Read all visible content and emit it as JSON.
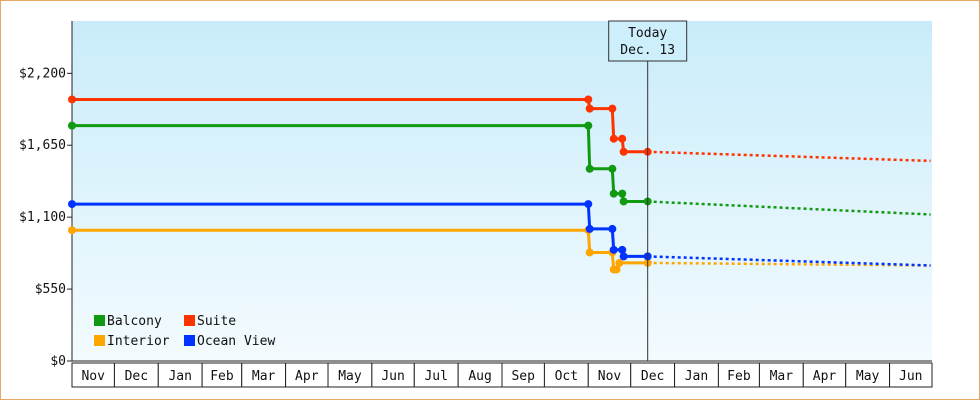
{
  "chart_data": {
    "type": "line",
    "title": "",
    "xlabel": "",
    "ylabel": "",
    "step": true,
    "ylim": [
      0,
      2600
    ],
    "yticks": [
      0,
      550,
      1100,
      1650,
      2200
    ],
    "ytick_labels": [
      "$0",
      "$550",
      "$1,100",
      "$1,650",
      "$2,200"
    ],
    "x_axis": {
      "start": "2022-11-01",
      "end": "2024-06-30",
      "months": [
        {
          "label": "Nov",
          "start": "2022-11-01"
        },
        {
          "label": "Dec",
          "start": "2022-12-01"
        },
        {
          "label": "Jan",
          "start": "2023-01-01"
        },
        {
          "label": "Feb",
          "start": "2023-02-01"
        },
        {
          "label": "Mar",
          "start": "2023-03-01"
        },
        {
          "label": "Apr",
          "start": "2023-04-01"
        },
        {
          "label": "May",
          "start": "2023-05-01"
        },
        {
          "label": "Jun",
          "start": "2023-06-01"
        },
        {
          "label": "Jul",
          "start": "2023-07-01"
        },
        {
          "label": "Aug",
          "start": "2023-08-01"
        },
        {
          "label": "Sep",
          "start": "2023-09-01"
        },
        {
          "label": "Oct",
          "start": "2023-10-01"
        },
        {
          "label": "Nov",
          "start": "2023-11-01"
        },
        {
          "label": "Dec",
          "start": "2023-12-01"
        },
        {
          "label": "Jan",
          "start": "2024-01-01"
        },
        {
          "label": "Feb",
          "start": "2024-02-01"
        },
        {
          "label": "Mar",
          "start": "2024-03-01"
        },
        {
          "label": "Apr",
          "start": "2024-04-01"
        },
        {
          "label": "May",
          "start": "2024-05-01"
        },
        {
          "label": "Jun",
          "start": "2024-06-01"
        }
      ]
    },
    "annotation": {
      "line1": "Today",
      "line2": "Dec. 13",
      "date": "2023-12-13"
    },
    "grid": false,
    "legend": "bottom-left",
    "series": [
      {
        "name": "Balcony",
        "color": "#119911",
        "points": [
          {
            "x": "2022-11-01",
            "y": 1800
          },
          {
            "x": "2023-11-01",
            "y": 1800
          },
          {
            "x": "2023-11-02",
            "y": 1470
          },
          {
            "x": "2023-11-18",
            "y": 1470
          },
          {
            "x": "2023-11-19",
            "y": 1280
          },
          {
            "x": "2023-11-25",
            "y": 1280
          },
          {
            "x": "2023-11-26",
            "y": 1220
          },
          {
            "x": "2023-12-13",
            "y": 1220
          }
        ],
        "forecast": [
          {
            "x": "2023-12-13",
            "y": 1220
          },
          {
            "x": "2024-06-30",
            "y": 1120
          }
        ]
      },
      {
        "name": "Suite",
        "color": "#ff3300",
        "points": [
          {
            "x": "2022-11-01",
            "y": 2000
          },
          {
            "x": "2023-11-01",
            "y": 2000
          },
          {
            "x": "2023-11-02",
            "y": 1930
          },
          {
            "x": "2023-11-18",
            "y": 1930
          },
          {
            "x": "2023-11-19",
            "y": 1700
          },
          {
            "x": "2023-11-25",
            "y": 1700
          },
          {
            "x": "2023-11-26",
            "y": 1600
          },
          {
            "x": "2023-12-13",
            "y": 1600
          }
        ],
        "forecast": [
          {
            "x": "2023-12-13",
            "y": 1600
          },
          {
            "x": "2024-06-30",
            "y": 1530
          }
        ]
      },
      {
        "name": "Interior",
        "color": "#ffa500",
        "points": [
          {
            "x": "2022-11-01",
            "y": 1000
          },
          {
            "x": "2023-11-01",
            "y": 1000
          },
          {
            "x": "2023-11-02",
            "y": 830
          },
          {
            "x": "2023-11-18",
            "y": 830
          },
          {
            "x": "2023-11-19",
            "y": 700
          },
          {
            "x": "2023-11-21",
            "y": 700
          },
          {
            "x": "2023-11-23",
            "y": 750
          },
          {
            "x": "2023-12-13",
            "y": 750
          }
        ],
        "forecast": [
          {
            "x": "2023-12-13",
            "y": 750
          },
          {
            "x": "2024-06-30",
            "y": 730
          }
        ]
      },
      {
        "name": "Ocean View",
        "color": "#0033ff",
        "points": [
          {
            "x": "2022-11-01",
            "y": 1200
          },
          {
            "x": "2023-11-01",
            "y": 1200
          },
          {
            "x": "2023-11-02",
            "y": 1010
          },
          {
            "x": "2023-11-18",
            "y": 1010
          },
          {
            "x": "2023-11-19",
            "y": 850
          },
          {
            "x": "2023-11-25",
            "y": 850
          },
          {
            "x": "2023-11-26",
            "y": 800
          },
          {
            "x": "2023-12-13",
            "y": 800
          }
        ],
        "forecast": [
          {
            "x": "2023-12-13",
            "y": 800
          },
          {
            "x": "2024-06-30",
            "y": 730
          }
        ]
      }
    ]
  }
}
